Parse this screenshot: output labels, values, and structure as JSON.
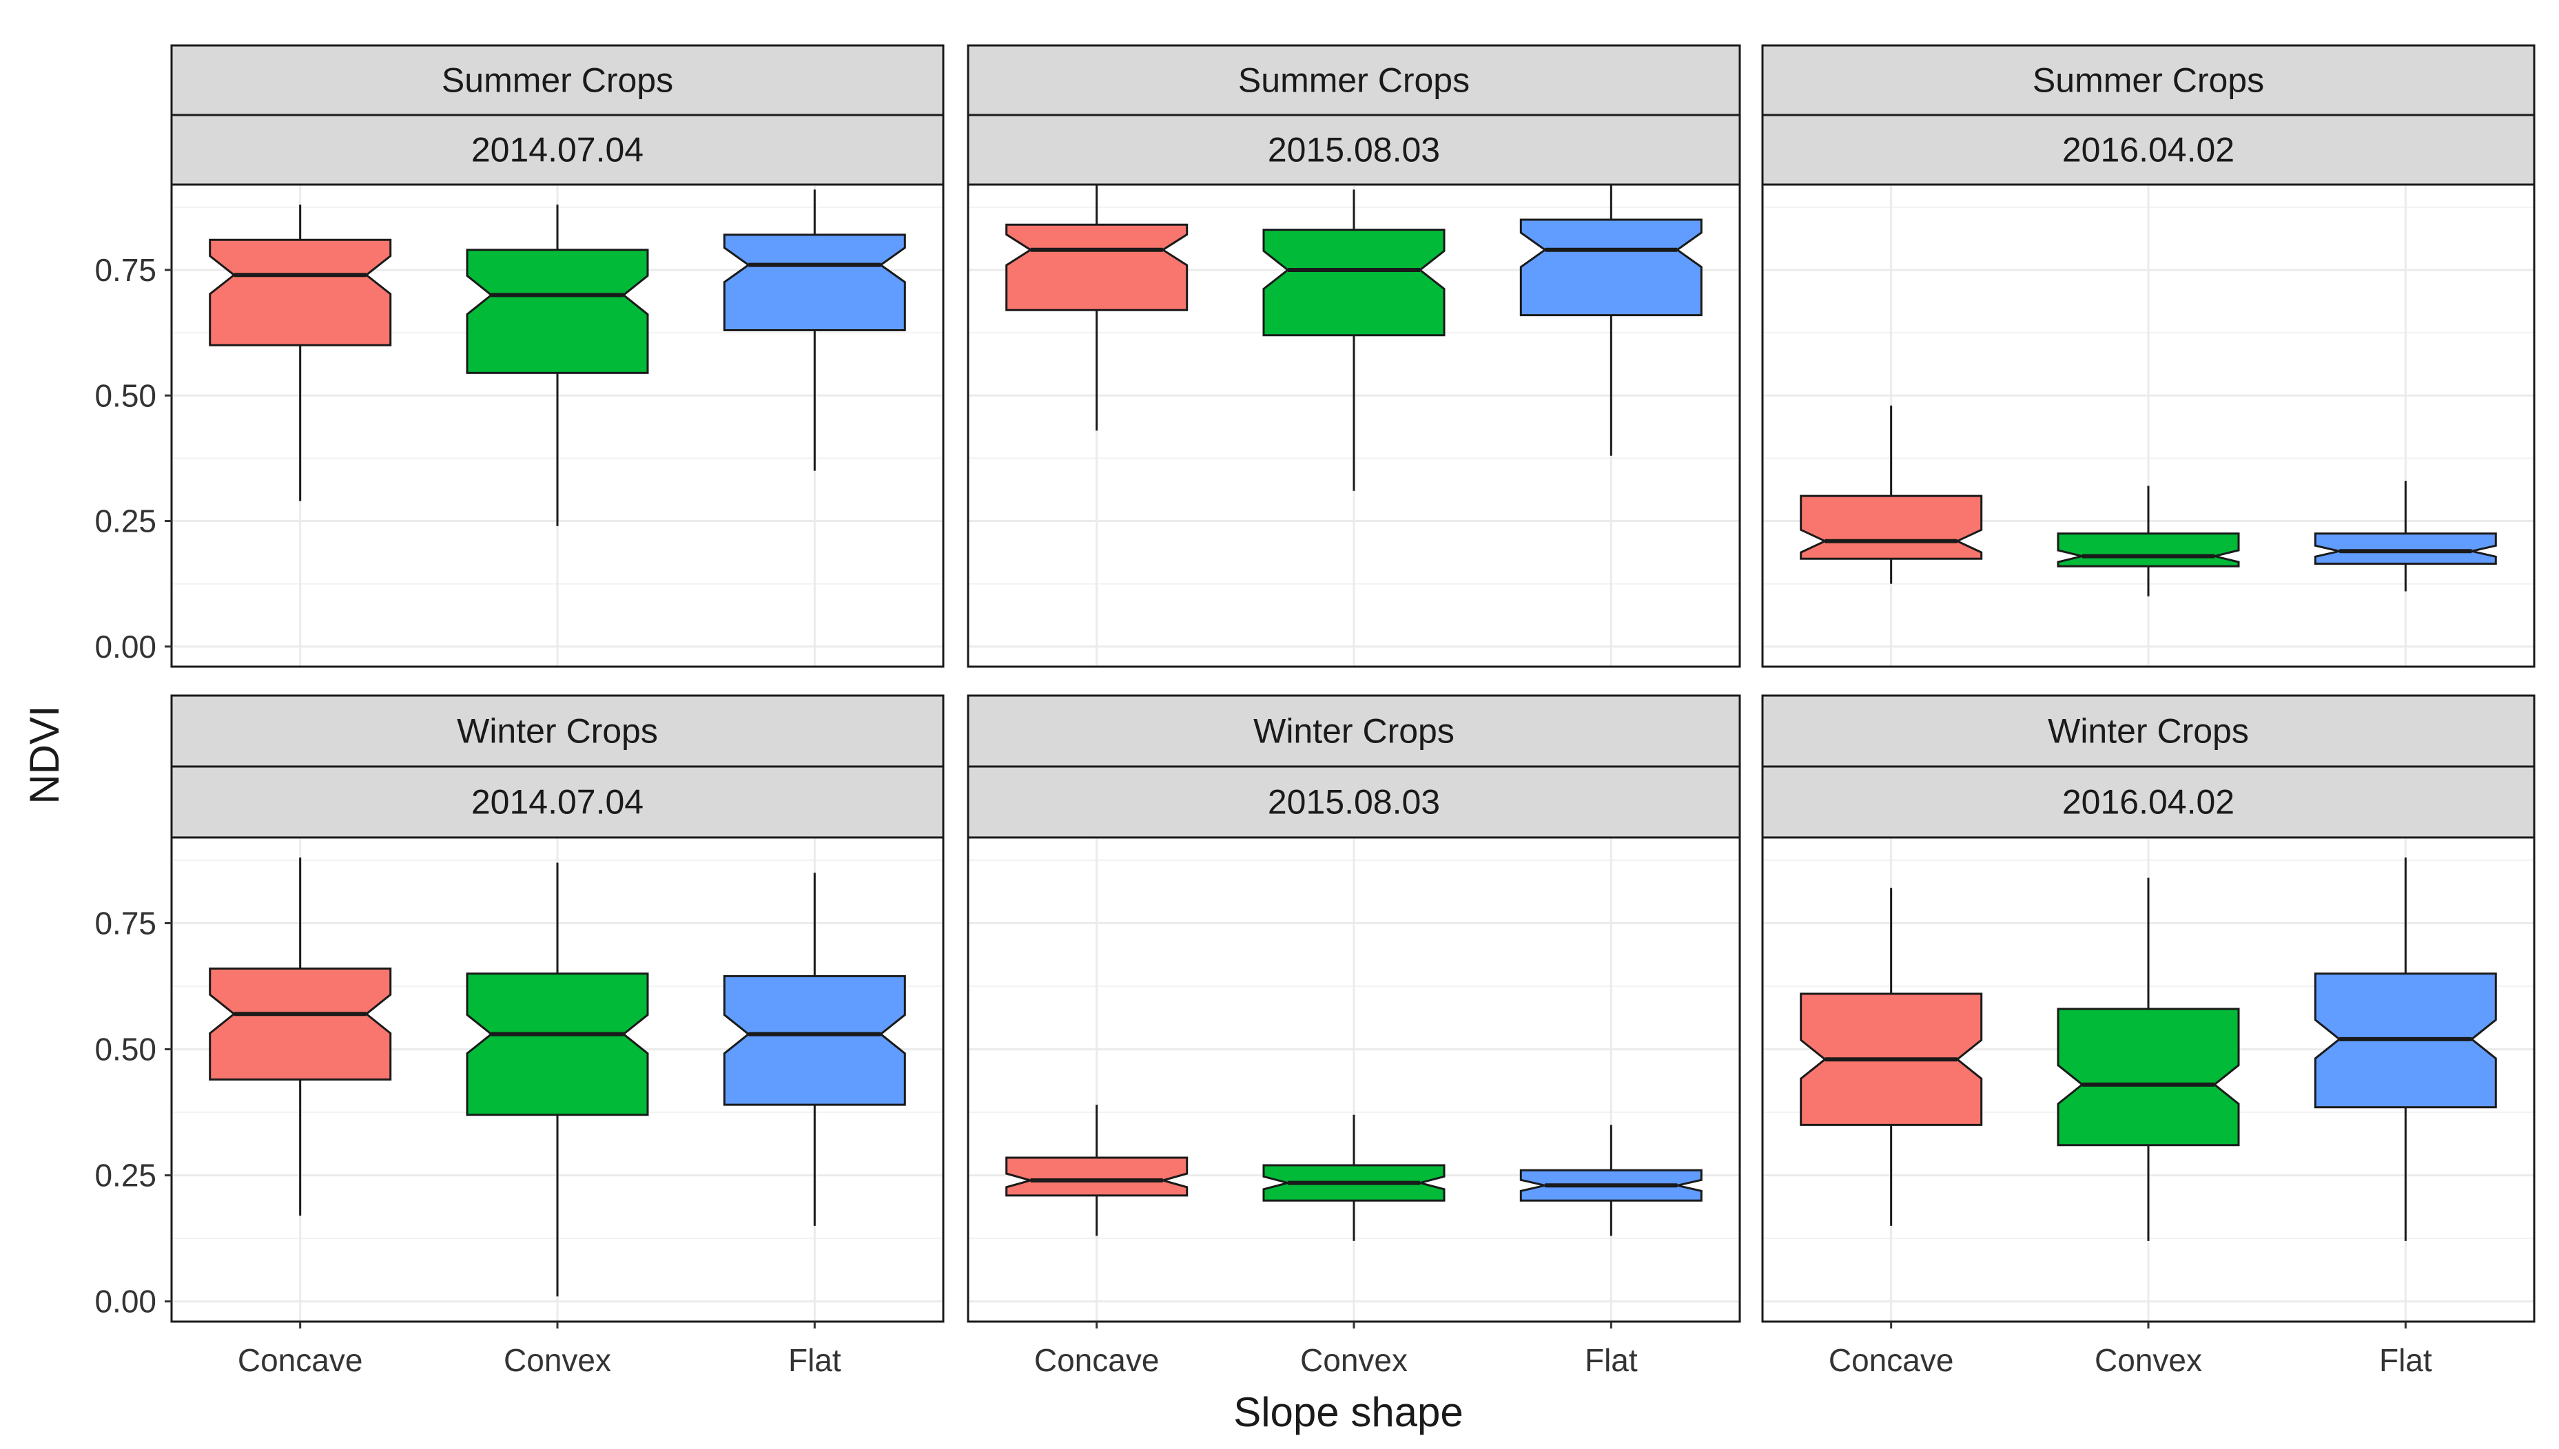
{
  "chart_data": {
    "type": "boxplot",
    "xlabel": "Slope shape",
    "ylabel": "NDVI",
    "categories": [
      "Concave",
      "Convex",
      "Flat"
    ],
    "y_ticks": [
      "0.00",
      "0.25",
      "0.50",
      "0.75"
    ],
    "ylim": [
      -0.04,
      0.92
    ],
    "notched": true,
    "colors": {
      "Concave": "#F8766D",
      "Convex": "#00BA38",
      "Flat": "#619CFF"
    },
    "panels": [
      {
        "crop": "Summer Crops",
        "date": "2014.07.04",
        "boxes": [
          {
            "category": "Concave",
            "lower_whisker": 0.29,
            "q1": 0.6,
            "median": 0.74,
            "q3": 0.81,
            "upper_whisker": 0.88
          },
          {
            "category": "Convex",
            "lower_whisker": 0.24,
            "q1": 0.545,
            "median": 0.7,
            "q3": 0.79,
            "upper_whisker": 0.88
          },
          {
            "category": "Flat",
            "lower_whisker": 0.35,
            "q1": 0.63,
            "median": 0.76,
            "q3": 0.82,
            "upper_whisker": 0.91
          }
        ]
      },
      {
        "crop": "Summer Crops",
        "date": "2015.08.03",
        "boxes": [
          {
            "category": "Concave",
            "lower_whisker": 0.43,
            "q1": 0.67,
            "median": 0.79,
            "q3": 0.84,
            "upper_whisker": 0.92
          },
          {
            "category": "Convex",
            "lower_whisker": 0.31,
            "q1": 0.62,
            "median": 0.75,
            "q3": 0.83,
            "upper_whisker": 0.91
          },
          {
            "category": "Flat",
            "lower_whisker": 0.38,
            "q1": 0.66,
            "median": 0.79,
            "q3": 0.85,
            "upper_whisker": 0.92
          }
        ]
      },
      {
        "crop": "Summer Crops",
        "date": "2016.04.02",
        "boxes": [
          {
            "category": "Concave",
            "lower_whisker": 0.125,
            "q1": 0.175,
            "median": 0.21,
            "q3": 0.3,
            "upper_whisker": 0.48
          },
          {
            "category": "Convex",
            "lower_whisker": 0.1,
            "q1": 0.16,
            "median": 0.18,
            "q3": 0.225,
            "upper_whisker": 0.32
          },
          {
            "category": "Flat",
            "lower_whisker": 0.11,
            "q1": 0.165,
            "median": 0.19,
            "q3": 0.225,
            "upper_whisker": 0.33
          }
        ]
      },
      {
        "crop": "Winter Crops",
        "date": "2014.07.04",
        "boxes": [
          {
            "category": "Concave",
            "lower_whisker": 0.17,
            "q1": 0.44,
            "median": 0.57,
            "q3": 0.66,
            "upper_whisker": 0.88
          },
          {
            "category": "Convex",
            "lower_whisker": 0.01,
            "q1": 0.37,
            "median": 0.53,
            "q3": 0.65,
            "upper_whisker": 0.87
          },
          {
            "category": "Flat",
            "lower_whisker": 0.15,
            "q1": 0.39,
            "median": 0.53,
            "q3": 0.645,
            "upper_whisker": 0.85
          }
        ]
      },
      {
        "crop": "Winter Crops",
        "date": "2015.08.03",
        "boxes": [
          {
            "category": "Concave",
            "lower_whisker": 0.13,
            "q1": 0.21,
            "median": 0.24,
            "q3": 0.285,
            "upper_whisker": 0.39
          },
          {
            "category": "Convex",
            "lower_whisker": 0.12,
            "q1": 0.2,
            "median": 0.235,
            "q3": 0.27,
            "upper_whisker": 0.37
          },
          {
            "category": "Flat",
            "lower_whisker": 0.13,
            "q1": 0.2,
            "median": 0.23,
            "q3": 0.26,
            "upper_whisker": 0.35
          }
        ]
      },
      {
        "crop": "Winter Crops",
        "date": "2016.04.02",
        "boxes": [
          {
            "category": "Concave",
            "lower_whisker": 0.15,
            "q1": 0.35,
            "median": 0.48,
            "q3": 0.61,
            "upper_whisker": 0.82
          },
          {
            "category": "Convex",
            "lower_whisker": 0.12,
            "q1": 0.31,
            "median": 0.43,
            "q3": 0.58,
            "upper_whisker": 0.84
          },
          {
            "category": "Flat",
            "lower_whisker": 0.12,
            "q1": 0.385,
            "median": 0.52,
            "q3": 0.65,
            "upper_whisker": 0.88
          }
        ]
      }
    ]
  }
}
